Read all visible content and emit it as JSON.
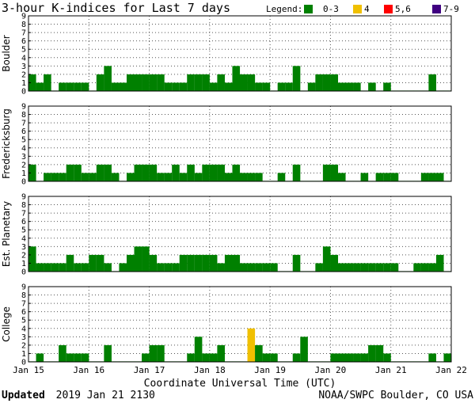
{
  "title": "3-hour K-indices for Last 7 days",
  "legend": {
    "label": "Legend:",
    "items": [
      {
        "label": "0-3",
        "color": "#008000"
      },
      {
        "label": "4",
        "color": "#f0c000"
      },
      {
        "label": "5,6",
        "color": "#ff0000"
      },
      {
        "label": "7-9",
        "color": "#3f0080"
      }
    ]
  },
  "x_axis_title": "Coordinate Universal Time (UTC)",
  "footer": {
    "updated_label": "Updated",
    "updated_value": "2019 Jan 21 2130",
    "credit": "NOAA/SWPC Boulder, CO USA"
  },
  "chart_data": {
    "type": "bar",
    "ylim": [
      0,
      9
    ],
    "y_ticks": [
      "0",
      "1",
      "2",
      "3",
      "4",
      "5",
      "6",
      "7",
      "8",
      "9"
    ],
    "x_tick_labels": [
      "Jan 15",
      "Jan 16",
      "Jan 17",
      "Jan 18",
      "Jan 19",
      "Jan 20",
      "Jan 21",
      "Jan 22"
    ],
    "bars_per_day": 8,
    "grid": true,
    "series": [
      {
        "name": "Boulder",
        "values": [
          2,
          1,
          2,
          0,
          1,
          1,
          1,
          1,
          0,
          2,
          3,
          1,
          1,
          2,
          2,
          2,
          2,
          2,
          1,
          1,
          1,
          2,
          2,
          2,
          1,
          2,
          1,
          3,
          2,
          2,
          1,
          1,
          0,
          1,
          1,
          3,
          0,
          1,
          2,
          2,
          2,
          1,
          1,
          1,
          0,
          1,
          0,
          1,
          0,
          0,
          0,
          0,
          0,
          2,
          0,
          0
        ]
      },
      {
        "name": "Fredericksburg",
        "values": [
          2,
          0,
          1,
          1,
          1,
          2,
          2,
          1,
          1,
          2,
          2,
          1,
          0,
          1,
          2,
          2,
          2,
          1,
          1,
          2,
          1,
          2,
          1,
          2,
          2,
          2,
          1,
          2,
          1,
          1,
          1,
          0,
          0,
          1,
          0,
          2,
          0,
          0,
          0,
          2,
          2,
          1,
          0,
          0,
          1,
          0,
          1,
          1,
          1,
          0,
          0,
          0,
          1,
          1,
          1,
          0
        ]
      },
      {
        "name": "Est. Planetary",
        "values": [
          3,
          1,
          1,
          1,
          1,
          2,
          1,
          1,
          2,
          2,
          1,
          0,
          1,
          2,
          3,
          3,
          2,
          1,
          1,
          1,
          2,
          2,
          2,
          2,
          2,
          1,
          2,
          2,
          1,
          1,
          1,
          1,
          1,
          0,
          0,
          2,
          0,
          0,
          1,
          3,
          2,
          1,
          1,
          1,
          1,
          1,
          1,
          1,
          1,
          0,
          0,
          1,
          1,
          1,
          2,
          0
        ]
      },
      {
        "name": "College",
        "values": [
          0,
          1,
          0,
          0,
          2,
          1,
          1,
          1,
          0,
          0,
          2,
          0,
          0,
          0,
          0,
          1,
          2,
          2,
          0,
          0,
          0,
          1,
          3,
          1,
          1,
          2,
          0,
          0,
          0,
          4,
          2,
          1,
          1,
          0,
          0,
          1,
          3,
          0,
          0,
          0,
          1,
          1,
          1,
          1,
          1,
          2,
          2,
          1,
          0,
          0,
          0,
          0,
          0,
          1,
          0,
          1
        ]
      }
    ]
  }
}
